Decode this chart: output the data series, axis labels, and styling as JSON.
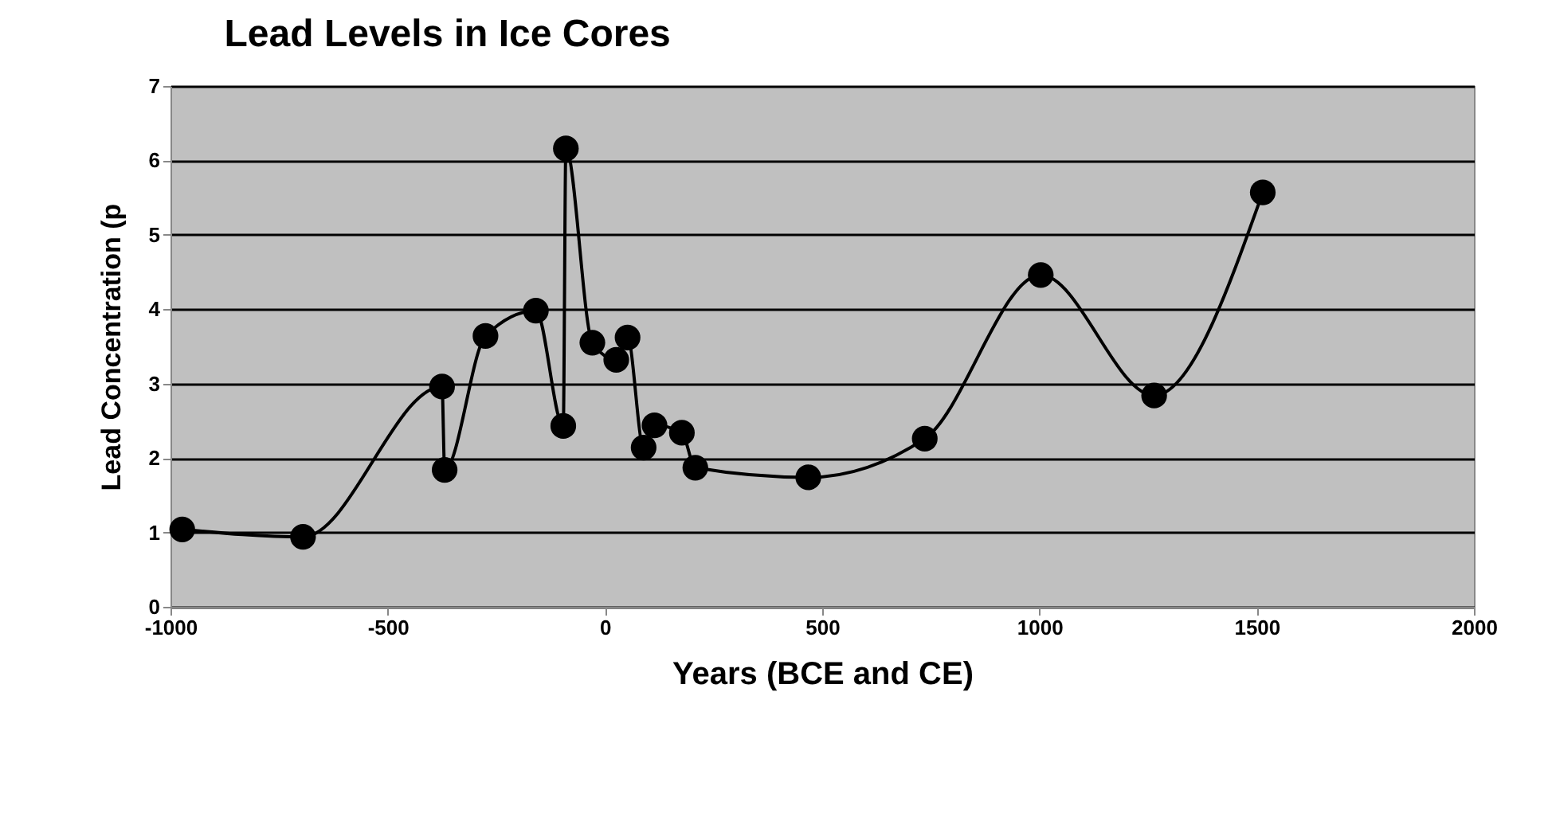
{
  "chart_data": {
    "type": "line",
    "title": "Lead Levels in Ice Cores",
    "xlabel": "Years (BCE and CE)",
    "ylabel": "Lead Concentration (p",
    "x": [
      -973,
      -695,
      -375,
      -369,
      -275,
      -159,
      -96,
      -90,
      -29,
      26,
      52,
      89,
      114,
      177,
      208,
      468,
      736,
      1003,
      1264,
      1514
    ],
    "series": [
      {
        "color": "#000000",
        "values": [
          1.04,
          0.94,
          2.96,
          1.84,
          3.64,
          3.98,
          2.43,
          6.16,
          3.55,
          3.32,
          3.62,
          2.14,
          2.44,
          2.34,
          1.87,
          1.74,
          2.26,
          4.46,
          2.84,
          5.57
        ]
      }
    ],
    "xlim": [
      -1000,
      2000
    ],
    "xticks": [
      -1000,
      -500,
      0,
      500,
      1000,
      1500,
      2000
    ],
    "ylim": [
      0,
      7
    ],
    "yticks": [
      0,
      1,
      2,
      3,
      4,
      5,
      6,
      7
    ],
    "grid": "y",
    "marker": "circle",
    "line_style": "solid"
  }
}
